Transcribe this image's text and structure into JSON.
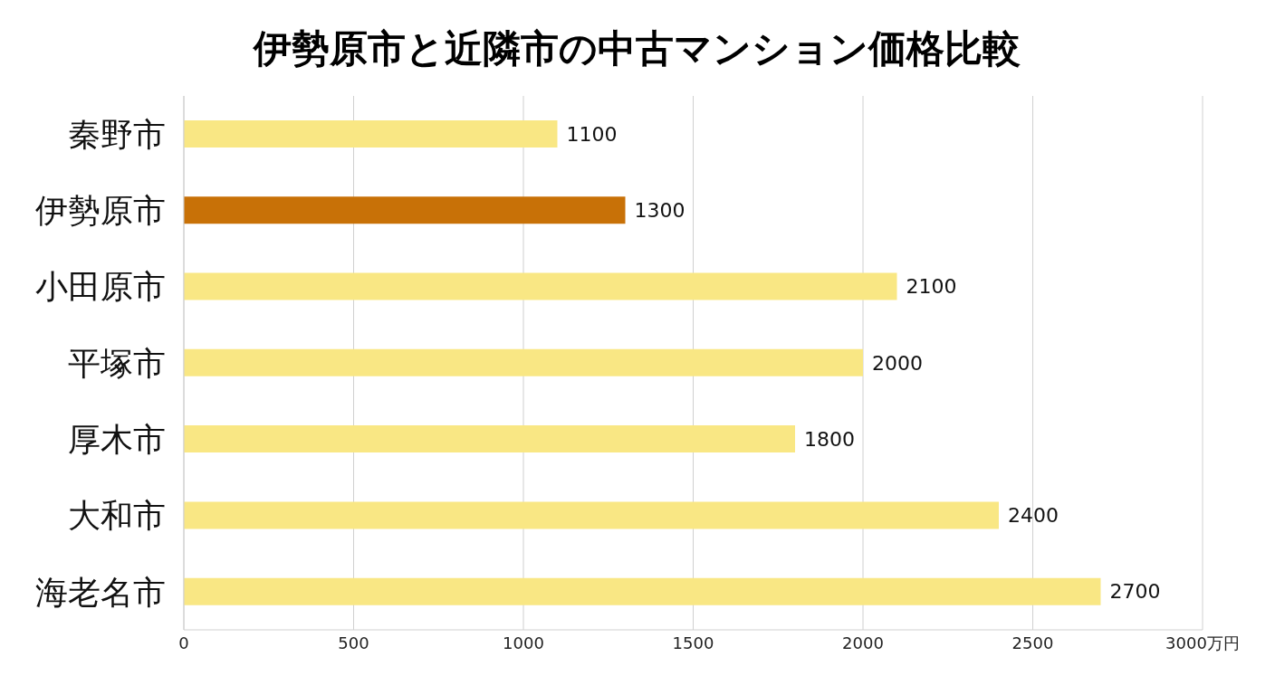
{
  "chart_data": {
    "type": "bar",
    "orientation": "horizontal",
    "title": "伊勢原市と近隣市の中古マンション価格比較",
    "categories": [
      "秦野市",
      "伊勢原市",
      "小田原市",
      "平塚市",
      "厚木市",
      "大和市",
      "海老名市"
    ],
    "values": [
      1100,
      1300,
      2100,
      2000,
      1800,
      2400,
      2700
    ],
    "colors": [
      "#f9e784",
      "#c87107",
      "#f9e784",
      "#f9e784",
      "#f9e784",
      "#f9e784",
      "#f9e784"
    ],
    "xlim": [
      0,
      3000
    ],
    "xticks": [
      0,
      500,
      1000,
      1500,
      2000,
      2500,
      {
        "value": 3000,
        "label": "3000万円"
      }
    ],
    "grid": "x",
    "data_labels": true
  }
}
